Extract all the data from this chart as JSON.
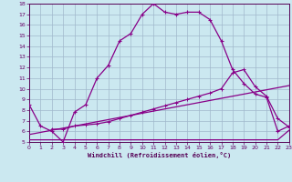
{
  "xlabel": "Windchill (Refroidissement éolien,°C)",
  "background_color": "#cbe8f0",
  "grid_color": "#a0b8cc",
  "line_color": "#880088",
  "xlim": [
    0,
    23
  ],
  "ylim": [
    5,
    18
  ],
  "yticks": [
    5,
    6,
    7,
    8,
    9,
    10,
    11,
    12,
    13,
    14,
    15,
    16,
    17,
    18
  ],
  "xticks": [
    0,
    1,
    2,
    3,
    4,
    5,
    6,
    7,
    8,
    9,
    10,
    11,
    12,
    13,
    14,
    15,
    16,
    17,
    18,
    19,
    20,
    21,
    22,
    23
  ],
  "curve1_x": [
    0,
    1,
    2,
    3,
    4,
    5,
    6,
    7,
    8,
    9,
    10,
    11,
    12,
    13,
    14,
    15,
    16,
    17,
    18,
    19,
    20,
    21,
    22,
    23
  ],
  "curve1_y": [
    8.5,
    6.5,
    6.0,
    5.0,
    7.8,
    8.5,
    11.0,
    12.2,
    14.5,
    15.2,
    17.0,
    18.0,
    17.2,
    17.0,
    17.2,
    17.2,
    16.5,
    14.5,
    11.8,
    10.5,
    9.5,
    9.2,
    6.0,
    6.5
  ],
  "curve2_x": [
    0,
    1,
    2,
    3,
    4,
    5,
    6,
    7,
    8,
    9,
    10,
    11,
    12,
    13,
    14,
    15,
    16,
    17,
    18,
    19,
    20,
    21,
    22,
    23
  ],
  "curve2_y": [
    5.2,
    5.2,
    5.2,
    5.2,
    5.2,
    5.2,
    5.2,
    5.2,
    5.2,
    5.2,
    5.2,
    5.2,
    5.2,
    5.2,
    5.2,
    5.2,
    5.2,
    5.2,
    5.2,
    5.2,
    5.2,
    5.2,
    5.2,
    6.1
  ],
  "curve3_x": [
    0,
    23
  ],
  "curve3_y": [
    5.7,
    10.3
  ],
  "curve4_x": [
    2,
    3,
    4,
    5,
    6,
    7,
    8,
    9,
    10,
    11,
    12,
    13,
    14,
    15,
    16,
    17,
    18,
    19,
    20,
    21,
    22,
    23
  ],
  "curve4_y": [
    6.2,
    6.2,
    6.5,
    6.6,
    6.7,
    6.9,
    7.2,
    7.5,
    7.8,
    8.1,
    8.4,
    8.7,
    9.0,
    9.3,
    9.6,
    10.0,
    11.5,
    11.8,
    10.2,
    9.3,
    7.2,
    6.4
  ]
}
